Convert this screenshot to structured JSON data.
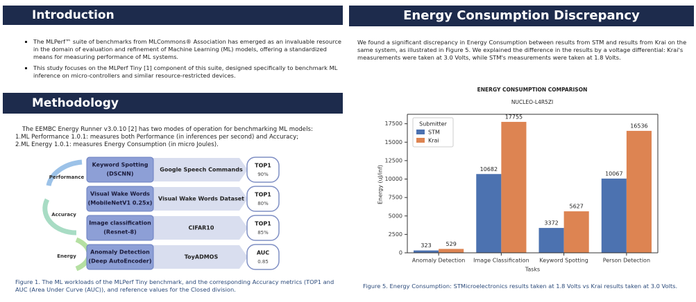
{
  "introduction": {
    "title": "Introduction",
    "bullets": [
      "The MLPerf™ suite of benchmarks from MLCommons® Association has emerged as an invaluable resource in the domain of evaluation and refinement of Machine Learning (ML) models, offering a standardized means for measuring performance of ML systems.",
      "This study focuses on the MLPerf Tiny [1] component of this suite, designed specifically to benchmark ML inference on micro-controllers and similar resource-restricted devices."
    ]
  },
  "methodology": {
    "title": "Methodology",
    "lines": [
      "The EEMBC Energy Runner v3.0.10 [2] has two modes of operation for benchmarking ML models:",
      "1.ML Performance 1.0.1: measures both Performance (in inferences per second) and Accuracy;",
      "2.ML Energy 1.0.1: measures Energy Consumption (in micro Joules)."
    ],
    "cycle": [
      "Performance",
      "Accuracy",
      "Energy"
    ],
    "rows": [
      {
        "model": [
          "Keyword Spotting",
          "(DSCNN)"
        ],
        "dataset": "Google Speech Commands",
        "metric": [
          "TOP1",
          "90%"
        ]
      },
      {
        "model": [
          "Visual Wake Words",
          "(MobileNetV1 0.25x)"
        ],
        "dataset": "Visual Wake Words Dataset",
        "metric": [
          "TOP1",
          "80%"
        ]
      },
      {
        "model": [
          "Image classification",
          "(Resnet-8)"
        ],
        "dataset": "CIFAR10",
        "metric": [
          "TOP1",
          "85%"
        ]
      },
      {
        "model": [
          "Anomaly Detection",
          "(Deep AutoEncoder)"
        ],
        "dataset": "ToyADMOS",
        "metric": [
          "AUC",
          "0.85"
        ]
      }
    ],
    "caption": "Figure 1. The ML workloads of the MLPerf Tiny benchmark, and the corresponding Accuracy metrics (TOP1 and AUC (Area Under Curve (AUC)), and reference values for the Closed division."
  },
  "energy": {
    "title": "Energy Consumption Discrepancy",
    "text": "We found a significant discrepancy in Energy Consumption between results from STM and results  from Krai on the same system, as illustrated in Figure 5.  We explained the difference in the results  by a voltage differential: Krai's measurements were taken at 3.0 Volts, while STM's measurements  were taken at 1.8 Volts.",
    "caption": "Figure 5. Energy Consumption: STMicroelectronics results taken at 1.8 Volts vs Krai results taken at 3.0 Volts."
  },
  "chart_data": {
    "type": "bar",
    "title": "ENERGY CONSUMPTION COMPARISON",
    "subtitle": "NUCLEO-L4R5ZI",
    "x_label": "Tasks",
    "y_label": "Energy (uJ/inf)",
    "legend_title": "Submitter",
    "legend": "upper left",
    "categories": [
      "Anomaly Detection",
      "Image Classification",
      "Keyword Spotting",
      "Person Detection"
    ],
    "series": [
      {
        "name": "STM",
        "color": "#4c72b0",
        "values": [
          323,
          10682,
          3372,
          10067
        ]
      },
      {
        "name": "Krai",
        "color": "#dd8452",
        "values": [
          529,
          17755,
          5627,
          16536
        ]
      }
    ],
    "ylim": [
      0,
      18500
    ],
    "yticks": [
      0,
      2500,
      5000,
      7500,
      10000,
      12500,
      15000,
      17500
    ]
  }
}
